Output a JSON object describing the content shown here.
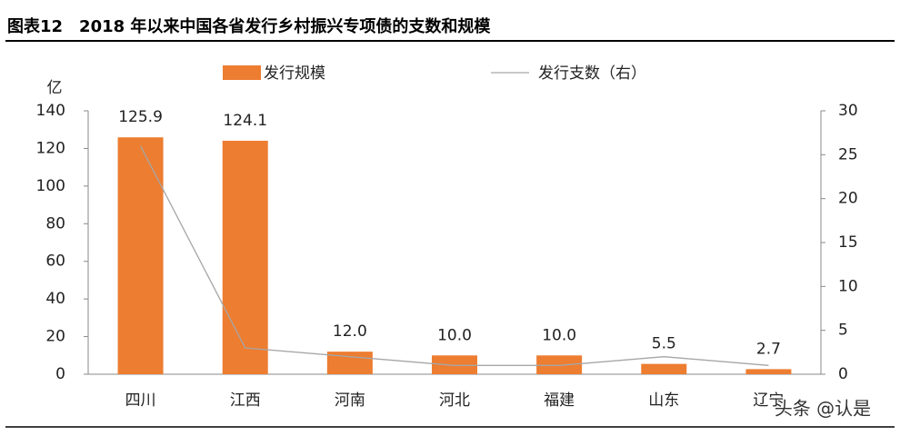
{
  "chart_data": {
    "type": "bar_line",
    "title": "图表12　2018 年以来中国各省发行乡村振兴专项债的支数和规模",
    "ylabel": "亿",
    "categories": [
      "四川",
      "江西",
      "河南",
      "河北",
      "福建",
      "山东",
      "辽宁"
    ],
    "series": [
      {
        "name": "发行规模",
        "type": "bar",
        "color": "#ed7d31",
        "values": [
          125.9,
          124.1,
          12.0,
          10.0,
          10.0,
          5.5,
          2.7
        ],
        "value_labels": [
          "125.9",
          "124.1",
          "12.0",
          "10.0",
          "10.0",
          "5.5",
          "2.7"
        ]
      },
      {
        "name": "发行支数（右）",
        "type": "line",
        "color": "#a6a6a6",
        "axis": "y2",
        "values": [
          26,
          3,
          2,
          1,
          1,
          2,
          1
        ]
      }
    ],
    "ylim": [
      0,
      140
    ],
    "yticks": [
      0,
      20,
      40,
      60,
      80,
      100,
      120,
      140
    ],
    "y2lim": [
      0,
      30
    ],
    "y2ticks": [
      0,
      5,
      10,
      15,
      20,
      25,
      30
    ],
    "legend": "top",
    "watermark": "头条 @认是"
  }
}
